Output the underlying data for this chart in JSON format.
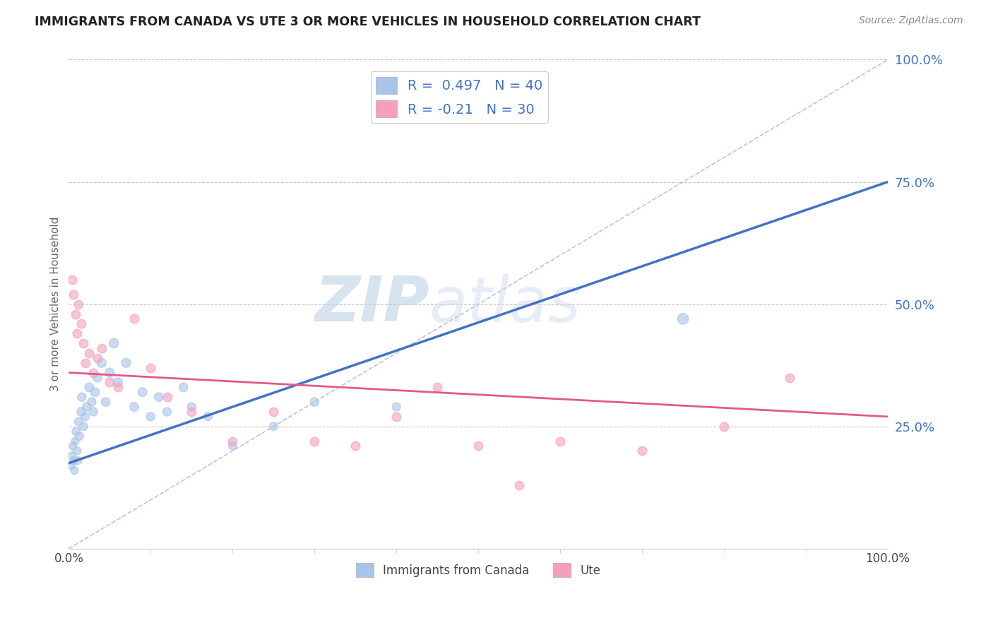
{
  "title": "IMMIGRANTS FROM CANADA VS UTE 3 OR MORE VEHICLES IN HOUSEHOLD CORRELATION CHART",
  "source": "Source: ZipAtlas.com",
  "ylabel": "3 or more Vehicles in Household",
  "legend_label1": "Immigrants from Canada",
  "legend_label2": "Ute",
  "R1": 0.497,
  "N1": 40,
  "R2": -0.21,
  "N2": 30,
  "color_blue": "#a8c4e8",
  "color_pink": "#f4a0bb",
  "color_blue_text": "#4472c4",
  "color_pink_text": "#e05a8a",
  "watermark_zip": "ZIP",
  "watermark_atlas": "atlas",
  "blue_scatter": [
    [
      0.3,
      17.0
    ],
    [
      0.4,
      19.0
    ],
    [
      0.5,
      21.0
    ],
    [
      0.6,
      18.0
    ],
    [
      0.7,
      16.0
    ],
    [
      0.8,
      22.0
    ],
    [
      0.9,
      24.0
    ],
    [
      1.0,
      20.0
    ],
    [
      1.1,
      18.0
    ],
    [
      1.2,
      26.0
    ],
    [
      1.3,
      23.0
    ],
    [
      1.5,
      28.0
    ],
    [
      1.6,
      31.0
    ],
    [
      1.8,
      25.0
    ],
    [
      2.0,
      27.0
    ],
    [
      2.2,
      29.0
    ],
    [
      2.5,
      33.0
    ],
    [
      2.8,
      30.0
    ],
    [
      3.0,
      28.0
    ],
    [
      3.2,
      32.0
    ],
    [
      3.5,
      35.0
    ],
    [
      4.0,
      38.0
    ],
    [
      4.5,
      30.0
    ],
    [
      5.0,
      36.0
    ],
    [
      5.5,
      42.0
    ],
    [
      6.0,
      34.0
    ],
    [
      7.0,
      38.0
    ],
    [
      8.0,
      29.0
    ],
    [
      9.0,
      32.0
    ],
    [
      10.0,
      27.0
    ],
    [
      11.0,
      31.0
    ],
    [
      12.0,
      28.0
    ],
    [
      14.0,
      33.0
    ],
    [
      15.0,
      29.0
    ],
    [
      17.0,
      27.0
    ],
    [
      20.0,
      21.0
    ],
    [
      25.0,
      25.0
    ],
    [
      30.0,
      30.0
    ],
    [
      40.0,
      29.0
    ],
    [
      75.0,
      47.0
    ]
  ],
  "blue_sizes": [
    60,
    60,
    60,
    60,
    60,
    60,
    70,
    65,
    65,
    70,
    70,
    75,
    75,
    70,
    70,
    75,
    80,
    75,
    75,
    80,
    85,
    85,
    80,
    85,
    90,
    85,
    85,
    80,
    80,
    75,
    80,
    75,
    80,
    75,
    70,
    65,
    70,
    75,
    70,
    120
  ],
  "pink_scatter": [
    [
      0.4,
      55.0
    ],
    [
      0.6,
      52.0
    ],
    [
      0.8,
      48.0
    ],
    [
      1.0,
      44.0
    ],
    [
      1.2,
      50.0
    ],
    [
      1.5,
      46.0
    ],
    [
      1.8,
      42.0
    ],
    [
      2.0,
      38.0
    ],
    [
      2.5,
      40.0
    ],
    [
      3.0,
      36.0
    ],
    [
      3.5,
      39.0
    ],
    [
      4.0,
      41.0
    ],
    [
      5.0,
      34.0
    ],
    [
      6.0,
      33.0
    ],
    [
      8.0,
      47.0
    ],
    [
      10.0,
      37.0
    ],
    [
      12.0,
      31.0
    ],
    [
      15.0,
      28.0
    ],
    [
      20.0,
      22.0
    ],
    [
      25.0,
      28.0
    ],
    [
      30.0,
      22.0
    ],
    [
      35.0,
      21.0
    ],
    [
      40.0,
      27.0
    ],
    [
      45.0,
      33.0
    ],
    [
      50.0,
      21.0
    ],
    [
      55.0,
      13.0
    ],
    [
      60.0,
      22.0
    ],
    [
      70.0,
      20.0
    ],
    [
      80.0,
      25.0
    ],
    [
      88.0,
      35.0
    ]
  ],
  "blue_line": [
    0.0,
    17.5,
    100.0,
    75.0
  ],
  "pink_line": [
    0.0,
    36.0,
    100.0,
    27.0
  ],
  "xmin": 0.0,
  "xmax": 100.0,
  "ymin": 0.0,
  "ymax": 100.0,
  "ytick_values": [
    25,
    50,
    75,
    100
  ],
  "ytick_labels": [
    "25.0%",
    "50.0%",
    "75.0%",
    "100.0%"
  ],
  "grid_color": "#c8c8c8",
  "background_color": "#ffffff"
}
